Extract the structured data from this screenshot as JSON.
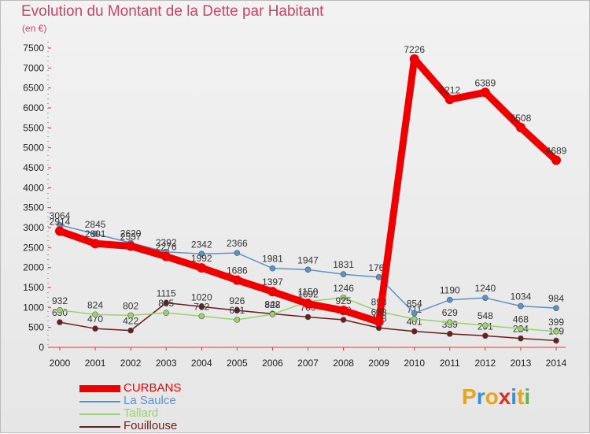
{
  "chart_data": {
    "type": "line",
    "title": "Evolution du Montant de la Dette par Habitant",
    "subtitle": "(en €)",
    "x": [
      "2000",
      "2001",
      "2002",
      "2003",
      "2004",
      "2005",
      "2006",
      "2007",
      "2008",
      "2009",
      "2010",
      "2011",
      "2012",
      "2013",
      "2014"
    ],
    "ylim": [
      0,
      7500
    ],
    "yticks": [
      0,
      500,
      1000,
      1500,
      2000,
      2500,
      3000,
      3500,
      4000,
      4500,
      5000,
      5500,
      6000,
      6500,
      7000,
      7500
    ],
    "grid": false,
    "legend_position": "bottom-left",
    "series": [
      {
        "name": "Fouillouse",
        "color": "#6b1e1e",
        "values": [
          630,
          470,
          422,
          1115,
          1020,
          926,
          842,
          760,
          690,
          488,
          401,
          339,
          291,
          224,
          169
        ]
      },
      {
        "name": "Tallard",
        "color": "#99d36b",
        "values": [
          932,
          824,
          802,
          865,
          782,
          691,
          828,
          1150,
          1246,
          898,
          711,
          629,
          548,
          468,
          399
        ]
      },
      {
        "name": "La Saulce",
        "color": "#5b93c8",
        "values": [
          3064,
          2845,
          2620,
          2392,
          2342,
          2366,
          1981,
          1947,
          1831,
          1760,
          854,
          1190,
          1240,
          1034,
          984
        ]
      },
      {
        "name": "CURBANS",
        "color": "#ee0000",
        "values": [
          2914,
          2601,
          2537,
          2276,
          1992,
          1686,
          1397,
          1092,
          925,
          638,
          7226,
          6212,
          6389,
          5508,
          4689
        ]
      }
    ],
    "legend": [
      "CURBANS",
      "La Saulce",
      "Tallard",
      "Fouillouse"
    ]
  },
  "logo": {
    "letters": [
      "P",
      "r",
      "o",
      "x",
      "i",
      "t",
      "i"
    ],
    "colors": [
      "#e8a41c",
      "#3a8fd8",
      "#e8a41c",
      "#d6322a",
      "#3a8fd8",
      "#e8a41c",
      "#6ab04c"
    ]
  }
}
